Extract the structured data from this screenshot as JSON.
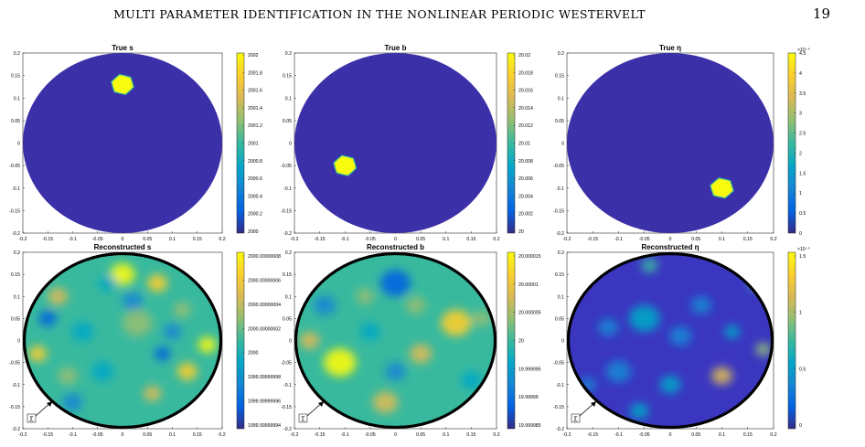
{
  "header": {
    "running_title": "MULTI PARAMETER IDENTIFICATION IN THE NONLINEAR PERIODIC WESTERVELT",
    "page_number": "19"
  },
  "colors": {
    "domain_fill": "#3c30a8",
    "outline": "#000000",
    "colormap": [
      "#352a87",
      "#0363e1",
      "#1485d4",
      "#06a7c6",
      "#38b99e",
      "#92bf73",
      "#d9ba56",
      "#fcce2e",
      "#f9fb0e"
    ]
  },
  "shared_axes": {
    "x_ticks": [
      "-0.2",
      "-0.15",
      "-0.1",
      "-0.05",
      "0",
      "0.05",
      "0.1",
      "0.15",
      "0.2"
    ],
    "y_ticks": [
      "0.2",
      "0.15",
      "0.1",
      "0.05",
      "0",
      "-0.05",
      "-0.1",
      "-0.15",
      "-0.2"
    ],
    "xlim": [
      -0.2,
      0.2
    ],
    "ylim": [
      -0.2,
      0.2
    ]
  },
  "boundary_label": "Σ",
  "panels": [
    {
      "title": "True s",
      "kind": "true",
      "inclusion": {
        "x": 0.0,
        "y": 0.13,
        "r": 0.023
      },
      "colorbar": {
        "ticks": [
          "2002",
          "2001.8",
          "2001.6",
          "2001.4",
          "2001.2",
          "2001",
          "2000.8",
          "2000.6",
          "2000.4",
          "2000.2",
          "2000"
        ],
        "exponent": ""
      }
    },
    {
      "title": "True b",
      "kind": "true",
      "inclusion": {
        "x": -0.1,
        "y": -0.05,
        "r": 0.023
      },
      "colorbar": {
        "ticks": [
          "20.02",
          "20.018",
          "20.016",
          "20.014",
          "20.012",
          "20.01",
          "20.008",
          "20.006",
          "20.004",
          "20.002",
          "20"
        ],
        "exponent": ""
      }
    },
    {
      "title": "True η",
      "kind": "true",
      "inclusion": {
        "x": 0.1,
        "y": -0.1,
        "r": 0.023
      },
      "colorbar": {
        "ticks": [
          "4.5",
          "4",
          "3.5",
          "3",
          "2.5",
          "2",
          "1.5",
          "1",
          "0.5",
          "0"
        ],
        "exponent": "×10⁻⁴"
      }
    },
    {
      "title": "Reconstructed s",
      "kind": "reconstructed",
      "colorbar": {
        "ticks": [
          "2000.00000008",
          "2000.00000006",
          "2000.00000004",
          "2000.00000002",
          "2000",
          "1999.99999998",
          "1999.99999996",
          "1999.99999994"
        ],
        "exponent": ""
      }
    },
    {
      "title": "Reconstructed b",
      "kind": "reconstructed",
      "colorbar": {
        "ticks": [
          "20.000015",
          "20.00001",
          "20.000005",
          "20",
          "19.999995",
          "19.99999",
          "19.999985"
        ],
        "exponent": ""
      }
    },
    {
      "title": "Reconstructed η",
      "kind": "reconstructed",
      "colorbar": {
        "ticks": [
          "1.5",
          "1",
          "0.5",
          "0"
        ],
        "exponent": "×10⁻⁴"
      }
    }
  ],
  "chart_data": {
    "type": "heatmap",
    "panels": [
      {
        "title": "True s",
        "range": [
          2000,
          2002
        ],
        "inclusion_center": [
          0.0,
          0.13
        ]
      },
      {
        "title": "True b",
        "range": [
          20,
          20.02
        ],
        "inclusion_center": [
          -0.1,
          -0.05
        ]
      },
      {
        "title": "True η",
        "range": [
          0,
          0.00045
        ],
        "inclusion_center": [
          0.1,
          -0.1
        ]
      },
      {
        "title": "Reconstructed s",
        "range": [
          1999.99999994,
          2000.00000008
        ]
      },
      {
        "title": "Reconstructed b",
        "range": [
          19.999985,
          20.000015
        ]
      },
      {
        "title": "Reconstructed η",
        "range": [
          0,
          0.00015
        ]
      }
    ],
    "x_range": [
      -0.2,
      0.2
    ],
    "y_range": [
      -0.2,
      0.2
    ]
  }
}
